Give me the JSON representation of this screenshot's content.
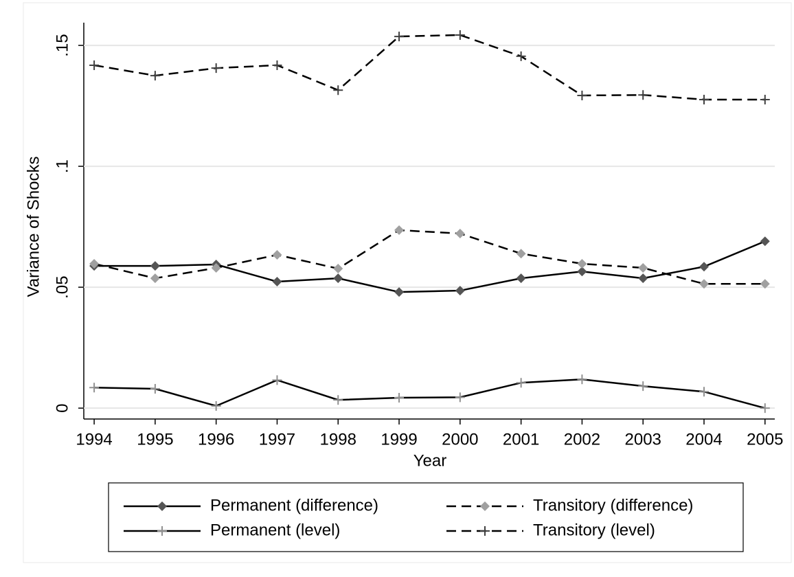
{
  "chart_data": {
    "type": "line",
    "x_label": "Year",
    "y_label": "Variance of Shocks",
    "x": [
      1994,
      1995,
      1996,
      1997,
      1998,
      1999,
      2000,
      2001,
      2002,
      2003,
      2004,
      2005
    ],
    "xlim": [
      1993.83,
      2005.16
    ],
    "xticks": [
      1994,
      1995,
      1996,
      1997,
      1998,
      1999,
      2000,
      2001,
      2002,
      2003,
      2004,
      2005
    ],
    "ylim": [
      -0.0045,
      0.1594
    ],
    "yticks": [
      0,
      {
        "value": 0.05,
        "label": ".05"
      },
      {
        "value": 0.1,
        "label": ".1"
      },
      {
        "value": 0.15,
        "label": ".15"
      }
    ],
    "grid": true,
    "legend": "bottom",
    "series": [
      {
        "name": "Permanent (difference)",
        "color": "#555555",
        "dash": false,
        "marker": "diamond",
        "values": [
          0.0588,
          0.0588,
          0.0594,
          0.0523,
          0.0537,
          0.048,
          0.0486,
          0.0537,
          0.0565,
          0.0537,
          0.0585,
          0.069
        ]
      },
      {
        "name": "Transitory (difference)",
        "color": "#a0a0a0",
        "dash": true,
        "marker": "diamond",
        "values": [
          0.0597,
          0.0537,
          0.058,
          0.0634,
          0.0577,
          0.0736,
          0.0722,
          0.0639,
          0.0597,
          0.058,
          0.0514,
          0.0514
        ]
      },
      {
        "name": "Permanent (level)",
        "color": "#909090",
        "dash": false,
        "marker": "plus",
        "values": [
          0.0085,
          0.008,
          0.0009,
          0.0116,
          0.0034,
          0.0043,
          0.0045,
          0.0105,
          0.0119,
          0.0091,
          0.0068,
          0
        ]
      },
      {
        "name": "Transitory (level)",
        "color": "#404040",
        "dash": true,
        "marker": "plus",
        "values": [
          0.1418,
          0.1375,
          0.1406,
          0.1418,
          0.1315,
          0.1537,
          0.1543,
          0.1455,
          0.1293,
          0.1295,
          0.1276,
          0.1276
        ]
      }
    ]
  }
}
